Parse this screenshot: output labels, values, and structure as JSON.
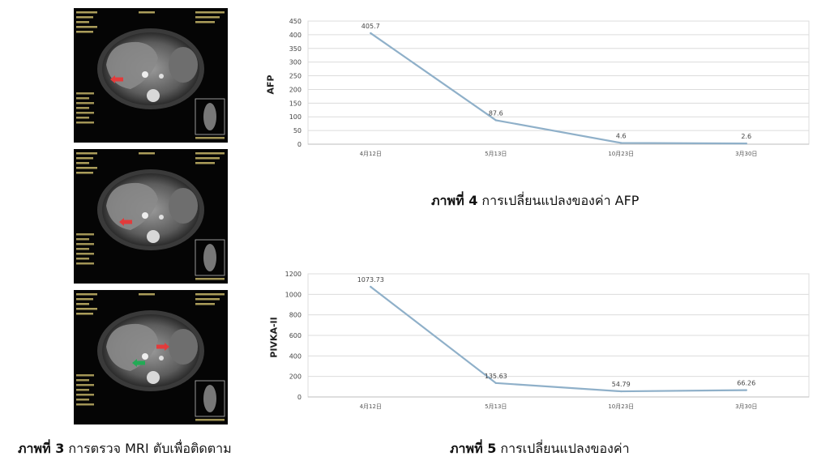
{
  "mri_panels": [
    {
      "arrows": [
        {
          "color": "#e23b3b"
        }
      ]
    },
    {
      "arrows": [
        {
          "color": "#e23b3b"
        }
      ]
    },
    {
      "arrows": [
        {
          "color": "#e23b3b"
        },
        {
          "color": "#22aa55"
        }
      ]
    }
  ],
  "colors": {
    "line": "#8fb0c9",
    "grid": "#dcdcdc",
    "axis": "#bdbdbd"
  },
  "captions": {
    "fig3": {
      "label": "ภาพที่ 3",
      "text": " การตรวจ MRI ตับเพื่อติดตาม"
    },
    "fig4": {
      "label": "ภาพที่ 4",
      "text": " การเปลี่ยนแปลงของค่า AFP"
    },
    "fig5": {
      "label": "ภาพที่ 5",
      "text": " การเปลี่ยนแปลงของค่า"
    }
  },
  "chart_data": [
    {
      "type": "line",
      "ylabel": "AFP",
      "categories": [
        "4月12日",
        "5月13日",
        "10月23日",
        "3月30日"
      ],
      "series": [
        {
          "values": [
            405.7,
            87.6,
            4.6,
            2.6
          ]
        }
      ],
      "data_labels": [
        "405.7",
        "87.6",
        "4.6",
        "2.6"
      ],
      "ylim": [
        0,
        450
      ],
      "yticks": [
        0,
        50,
        100,
        150,
        200,
        250,
        300,
        350,
        400,
        450
      ],
      "grid": true,
      "legend": "none"
    },
    {
      "type": "line",
      "ylabel": "PIVKA-II",
      "categories": [
        "4月12日",
        "5月13日",
        "10月23日",
        "3月30日"
      ],
      "series": [
        {
          "values": [
            1073.73,
            135.63,
            54.79,
            66.26
          ]
        }
      ],
      "data_labels": [
        "1073.73",
        "135.63",
        "54.79",
        "66.26"
      ],
      "ylim": [
        0,
        1200
      ],
      "yticks": [
        0,
        200,
        400,
        600,
        800,
        1000,
        1200
      ],
      "grid": true,
      "legend": "none"
    }
  ]
}
